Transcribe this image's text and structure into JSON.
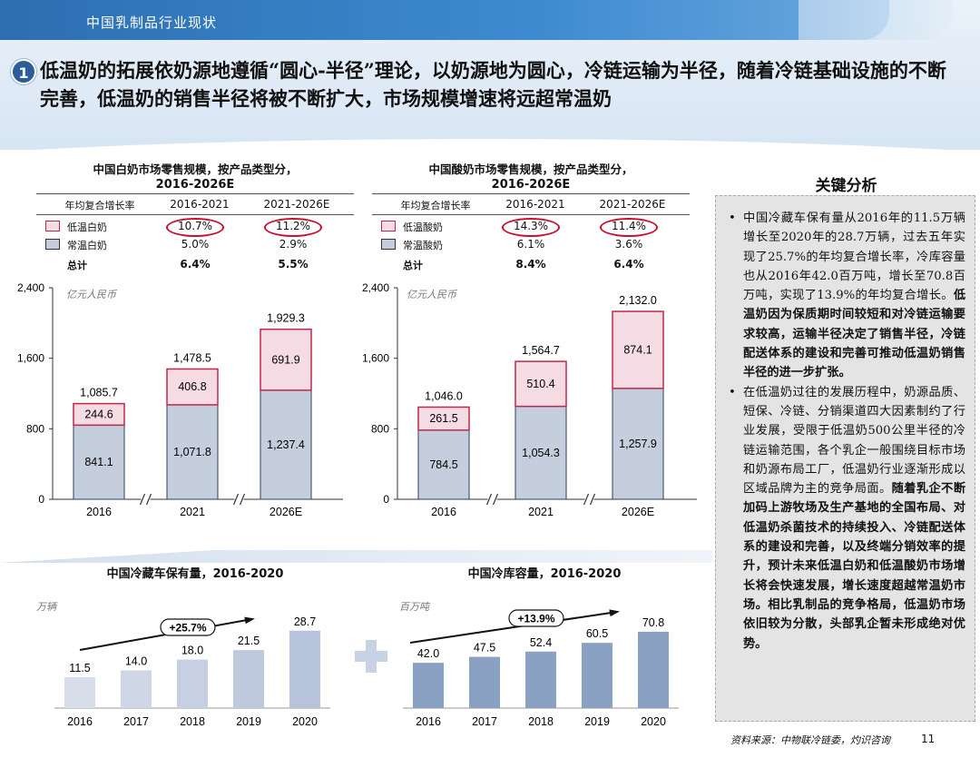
{
  "header": {
    "section_title": "中国乳制品行业现状",
    "badge": "1",
    "headline": "低温奶的拓展依奶源地遵循“圆心-半径”理论，以奶源地为圆心，冷链运输为半径，随着冷链基础设施的不断完善，低温奶的销售半径将被不断扩大，市场规模增速将远超常温奶"
  },
  "table_headers": {
    "cagr": "年均复合增长率",
    "p1": "2016-2021",
    "p2": "2021-2026E",
    "total": "总计"
  },
  "chart_data": [
    {
      "type": "bar",
      "stacked": true,
      "title": "中国白奶市场零售规模，按产品类型分，",
      "title_line2": "2016-2026E",
      "unit": "亿元人民币",
      "categories": [
        "2016",
        "2021",
        "2026E"
      ],
      "series": [
        {
          "name": "常温白奶",
          "values": [
            841.1,
            1071.8,
            1237.4
          ],
          "color": "#c5cedd"
        },
        {
          "name": "低温白奶",
          "values": [
            244.6,
            406.8,
            691.9
          ],
          "color": "#f4dbe4"
        }
      ],
      "totals": [
        1085.7,
        1478.5,
        1929.3
      ],
      "value_labels": {
        "base": [
          "841.1",
          "1,071.8",
          "1,237.4"
        ],
        "top": [
          "244.6",
          "406.8",
          "691.9"
        ],
        "totals": [
          "1,085.7",
          "1,478.5",
          "1,929.3"
        ]
      },
      "ylim": [
        0,
        2400
      ],
      "yticks": [
        "0",
        "800",
        "1,600",
        "2,400"
      ],
      "yticks_values": [
        0,
        800,
        1600,
        2400
      ],
      "cagr_table": [
        {
          "name": "低温白奶",
          "p1": "10.7%",
          "p2": "11.2%",
          "highlight": true
        },
        {
          "name": "常温白奶",
          "p1": "5.0%",
          "p2": "2.9%"
        },
        {
          "name": "总计",
          "p1": "6.4%",
          "p2": "5.5%"
        }
      ]
    },
    {
      "type": "bar",
      "stacked": true,
      "title": "中国酸奶市场零售规模，按产品类型分，",
      "title_line2": "2016-2026E",
      "unit": "亿元人民币",
      "categories": [
        "2016",
        "2021",
        "2026E"
      ],
      "series": [
        {
          "name": "常温酸奶",
          "values": [
            784.5,
            1054.3,
            1257.9
          ],
          "color": "#c5cedd"
        },
        {
          "name": "低温酸奶",
          "values": [
            261.5,
            510.4,
            874.1
          ],
          "color": "#f4dbe4"
        }
      ],
      "totals": [
        1046.0,
        1564.7,
        2132.0
      ],
      "value_labels": {
        "base": [
          "784.5",
          "1,054.3",
          "1,257.9"
        ],
        "top": [
          "261.5",
          "510.4",
          "874.1"
        ],
        "totals": [
          "1,046.0",
          "1,564.7",
          "2,132.0"
        ]
      },
      "ylim": [
        0,
        2400
      ],
      "yticks": [
        "0",
        "800",
        "1,600",
        "2,400"
      ],
      "yticks_values": [
        0,
        800,
        1600,
        2400
      ],
      "cagr_table": [
        {
          "name": "低温酸奶",
          "p1": "14.3%",
          "p2": "11.4%",
          "highlight": true
        },
        {
          "name": "常温酸奶",
          "p1": "6.1%",
          "p2": "3.6%"
        },
        {
          "name": "总计",
          "p1": "8.4%",
          "p2": "6.4%"
        }
      ]
    },
    {
      "type": "bar",
      "title": "中国冷藏车保有量，2016-2020",
      "unit": "万辆",
      "categories": [
        "2016",
        "2017",
        "2018",
        "2019",
        "2020"
      ],
      "values": [
        11.5,
        14.0,
        18.0,
        21.5,
        28.7
      ],
      "labels": [
        "11.5",
        "14.0",
        "18.0",
        "21.5",
        "28.7"
      ],
      "cagr": "+25.7%",
      "ylim": [
        0,
        32
      ]
    },
    {
      "type": "bar",
      "title": "中国冷库容量，2016-2020",
      "unit": "百万吨",
      "categories": [
        "2016",
        "2017",
        "2018",
        "2019",
        "2020"
      ],
      "values": [
        42.0,
        47.5,
        52.4,
        60.5,
        70.8
      ],
      "labels": [
        "42.0",
        "47.5",
        "52.4",
        "60.5",
        "70.8"
      ],
      "cagr": "+13.9%",
      "ylim": [
        0,
        80
      ]
    }
  ],
  "key_analysis": {
    "title": "关键分析",
    "point1_normal": "中国冷藏车保有量从2016年的11.5万辆增长至2020年的28.7万辆，过去五年实现了25.7%的年均复合增长率，冷库容量也从2016年42.0百万吨，增长至70.8百万吨，实现了13.9%的年均复合增长。",
    "point1_bold": "低温奶因为保质期时间较短和对冷链运输要求较高，运输半径决定了销售半径，冷链配送体系的建设和完善可推动低温奶销售半径的进一步扩张。",
    "point2_normal": "在低温奶过往的发展历程中，奶源品质、短保、冷链、分销渠道四大因素制约了行业发展，受限于低温奶500公里半径的冷链运输范围，各个乳企一般围绕目标市场和奶源布局工厂，低温奶行业逐渐形成以区域品牌为主的竞争局面。",
    "point2_bold": "随着乳企不断加码上游牧场及生产基地的全国布局、对低温奶杀菌技术的持续投入、冷链配送体系的建设和完善，以及终端分销效率的提升，预计未来低温白奶和低温酸奶市场增长将会快速发展，增长速度超越常温奶市场。相比乳制品的竞争格局，低温奶市场依旧较为分散，头部乳企暂未形成绝对优势。"
  },
  "footer": {
    "source": "资料来源：中物联冷链委，灼识咨询",
    "page": "11"
  }
}
